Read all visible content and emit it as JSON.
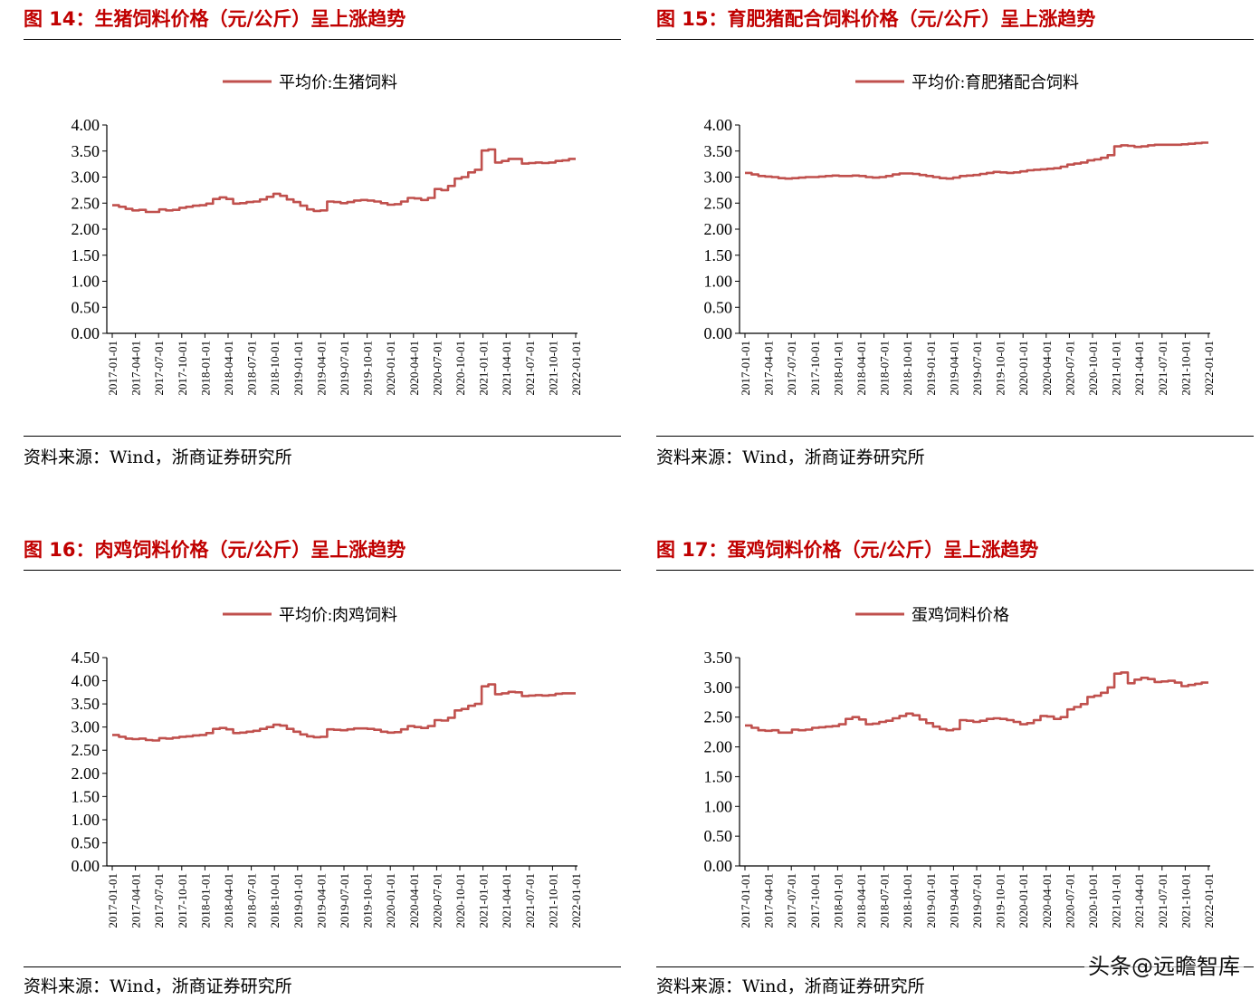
{
  "colors": {
    "title": "#c00000",
    "line": "#c0504d"
  },
  "source_label": "资料来源：Wind，浙商证券研究所",
  "watermark": "头条@远瞻智库",
  "chart_data": [
    {
      "type": "line",
      "title": "图 14：生猪饲料价格（元/公斤）呈上涨趋势",
      "legend": "平均价:生猪饲料",
      "legend_position": "top-center",
      "ylim": [
        0,
        4
      ],
      "yticks": [
        "4.00",
        "3.50",
        "3.00",
        "2.50",
        "2.00",
        "1.50",
        "1.00",
        "0.50",
        "0.00"
      ],
      "ytick_values": [
        4,
        3.5,
        3,
        2.5,
        2,
        1.5,
        1,
        0.5,
        0
      ],
      "x_ticks": [
        "2017-01-01",
        "2017-04-01",
        "2017-07-01",
        "2017-10-01",
        "2018-01-01",
        "2018-04-01",
        "2018-07-01",
        "2018-10-01",
        "2019-01-01",
        "2019-04-01",
        "2019-07-01",
        "2019-10-01",
        "2020-01-01",
        "2020-04-01",
        "2020-07-01",
        "2020-10-01",
        "2021-01-01",
        "2021-04-01",
        "2021-07-01",
        "2021-10-01",
        "2022-01-01"
      ],
      "values": [
        2.46,
        2.43,
        2.39,
        2.36,
        2.37,
        2.33,
        2.33,
        2.38,
        2.36,
        2.37,
        2.41,
        2.43,
        2.45,
        2.46,
        2.49,
        2.58,
        2.61,
        2.58,
        2.49,
        2.5,
        2.52,
        2.53,
        2.57,
        2.62,
        2.68,
        2.64,
        2.57,
        2.52,
        2.45,
        2.38,
        2.35,
        2.36,
        2.53,
        2.52,
        2.5,
        2.52,
        2.55,
        2.56,
        2.55,
        2.53,
        2.5,
        2.47,
        2.48,
        2.53,
        2.6,
        2.59,
        2.56,
        2.6,
        2.77,
        2.75,
        2.83,
        2.97,
        3.0,
        3.09,
        3.14,
        3.51,
        3.53,
        3.28,
        3.31,
        3.35,
        3.35,
        3.26,
        3.27,
        3.28,
        3.27,
        3.28,
        3.31,
        3.32,
        3.35
      ]
    },
    {
      "type": "line",
      "title": "图 15：育肥猪配合饲料价格（元/公斤）呈上涨趋势",
      "legend": "平均价:育肥猪配合饲料",
      "legend_position": "top-center",
      "ylim": [
        0,
        4
      ],
      "yticks": [
        "4.00",
        "3.50",
        "3.00",
        "2.50",
        "2.00",
        "1.50",
        "1.00",
        "0.50",
        "0.00"
      ],
      "ytick_values": [
        4,
        3.5,
        3,
        2.5,
        2,
        1.5,
        1,
        0.5,
        0
      ],
      "x_ticks": [
        "2017-01-01",
        "2017-04-01",
        "2017-07-01",
        "2017-10-01",
        "2018-01-01",
        "2018-04-01",
        "2018-07-01",
        "2018-10-01",
        "2019-01-01",
        "2019-04-01",
        "2019-07-01",
        "2019-10-01",
        "2020-01-01",
        "2020-04-01",
        "2020-07-01",
        "2020-10-01",
        "2021-01-01",
        "2021-04-01",
        "2021-07-01",
        "2021-10-01",
        "2022-01-01"
      ],
      "values": [
        3.08,
        3.05,
        3.02,
        3.01,
        3.0,
        2.98,
        2.97,
        2.98,
        2.99,
        3.0,
        3.0,
        3.01,
        3.02,
        3.03,
        3.02,
        3.02,
        3.03,
        3.02,
        3.0,
        2.99,
        3.0,
        3.02,
        3.05,
        3.07,
        3.07,
        3.06,
        3.04,
        3.02,
        3.0,
        2.98,
        2.97,
        2.99,
        3.02,
        3.03,
        3.04,
        3.06,
        3.08,
        3.1,
        3.09,
        3.08,
        3.09,
        3.11,
        3.13,
        3.14,
        3.15,
        3.16,
        3.17,
        3.2,
        3.24,
        3.26,
        3.28,
        3.32,
        3.34,
        3.37,
        3.42,
        3.59,
        3.61,
        3.6,
        3.58,
        3.59,
        3.61,
        3.62,
        3.62,
        3.62,
        3.62,
        3.63,
        3.64,
        3.65,
        3.66
      ]
    },
    {
      "type": "line",
      "title": "图 16：肉鸡饲料价格（元/公斤）呈上涨趋势",
      "legend": "平均价:肉鸡饲料",
      "legend_position": "top-center",
      "ylim": [
        0,
        4.5
      ],
      "yticks": [
        "4.50",
        "4.00",
        "3.50",
        "3.00",
        "2.50",
        "2.00",
        "1.50",
        "1.00",
        "0.50",
        "0.00"
      ],
      "ytick_values": [
        4.5,
        4,
        3.5,
        3,
        2.5,
        2,
        1.5,
        1,
        0.5,
        0
      ],
      "x_ticks": [
        "2017-01-01",
        "2017-04-01",
        "2017-07-01",
        "2017-10-01",
        "2018-01-01",
        "2018-04-01",
        "2018-07-01",
        "2018-10-01",
        "2019-01-01",
        "2019-04-01",
        "2019-07-01",
        "2019-10-01",
        "2020-01-01",
        "2020-04-01",
        "2020-07-01",
        "2020-10-01",
        "2021-01-01",
        "2021-04-01",
        "2021-07-01",
        "2021-10-01",
        "2022-01-01"
      ],
      "values": [
        2.83,
        2.79,
        2.75,
        2.74,
        2.75,
        2.72,
        2.71,
        2.76,
        2.75,
        2.77,
        2.79,
        2.8,
        2.82,
        2.83,
        2.87,
        2.96,
        2.98,
        2.95,
        2.87,
        2.88,
        2.9,
        2.92,
        2.96,
        3.0,
        3.05,
        3.03,
        2.96,
        2.9,
        2.84,
        2.8,
        2.78,
        2.79,
        2.95,
        2.94,
        2.93,
        2.95,
        2.97,
        2.97,
        2.96,
        2.94,
        2.9,
        2.88,
        2.89,
        2.95,
        3.02,
        3.0,
        2.98,
        3.02,
        3.15,
        3.14,
        3.2,
        3.36,
        3.39,
        3.46,
        3.5,
        3.88,
        3.92,
        3.71,
        3.73,
        3.76,
        3.75,
        3.67,
        3.68,
        3.69,
        3.68,
        3.69,
        3.72,
        3.73,
        3.73
      ]
    },
    {
      "type": "line",
      "title": "图 17：蛋鸡饲料价格（元/公斤）呈上涨趋势",
      "legend": "蛋鸡饲料价格",
      "legend_position": "top-center",
      "ylim": [
        0,
        3.5
      ],
      "yticks": [
        "3.50",
        "3.00",
        "2.50",
        "2.00",
        "1.50",
        "1.00",
        "0.50",
        "0.00"
      ],
      "ytick_values": [
        3.5,
        3,
        2.5,
        2,
        1.5,
        1,
        0.5,
        0
      ],
      "x_ticks": [
        "2017-01-01",
        "2017-04-01",
        "2017-07-01",
        "2017-10-01",
        "2018-01-01",
        "2018-04-01",
        "2018-07-01",
        "2018-10-01",
        "2019-01-01",
        "2019-04-01",
        "2019-07-01",
        "2019-10-01",
        "2020-01-01",
        "2020-04-01",
        "2020-07-01",
        "2020-10-01",
        "2021-01-01",
        "2021-04-01",
        "2021-07-01",
        "2021-10-01",
        "2022-01-01"
      ],
      "values": [
        2.36,
        2.32,
        2.28,
        2.27,
        2.28,
        2.24,
        2.24,
        2.29,
        2.28,
        2.29,
        2.32,
        2.33,
        2.34,
        2.35,
        2.38,
        2.47,
        2.5,
        2.46,
        2.38,
        2.39,
        2.42,
        2.44,
        2.48,
        2.52,
        2.56,
        2.53,
        2.46,
        2.4,
        2.34,
        2.3,
        2.28,
        2.3,
        2.45,
        2.44,
        2.42,
        2.44,
        2.47,
        2.48,
        2.47,
        2.45,
        2.42,
        2.38,
        2.4,
        2.45,
        2.52,
        2.51,
        2.47,
        2.5,
        2.63,
        2.67,
        2.72,
        2.84,
        2.86,
        2.91,
        3.0,
        3.23,
        3.25,
        3.07,
        3.13,
        3.16,
        3.14,
        3.09,
        3.1,
        3.11,
        3.08,
        3.02,
        3.04,
        3.06,
        3.08
      ]
    }
  ]
}
